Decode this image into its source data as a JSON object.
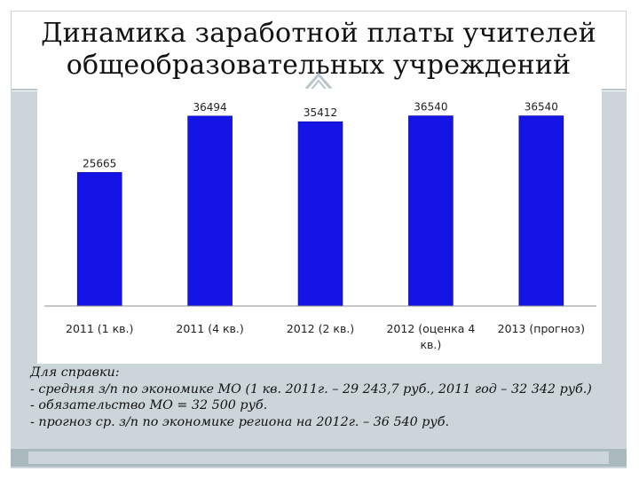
{
  "slide": {
    "title_line1": "Динамика заработной платы учителей",
    "title_line2": "общеобразовательных учреждений"
  },
  "chart_data": {
    "type": "bar",
    "categories": [
      "2011 (1 кв.)",
      "2011 (4 кв.)",
      "2012 (2 кв.)",
      "2012 (оценка 4 кв.)",
      "2013 (прогноз)"
    ],
    "category_lines": [
      [
        "2011 (1 кв.)"
      ],
      [
        "2011 (4 кв.)"
      ],
      [
        "2012 (2 кв.)"
      ],
      [
        "2012 (оценка 4",
        "кв.)"
      ],
      [
        "2013 (прогноз)"
      ]
    ],
    "values": [
      25665,
      36494,
      35412,
      36540,
      36540
    ],
    "data_labels": [
      "25665",
      "36494",
      "35412",
      "36540",
      "36540"
    ],
    "ylim": [
      0,
      38000
    ],
    "grid": false,
    "bar_color": "#1414e6"
  },
  "notes": {
    "heading": "Для справки:",
    "line1": "- средняя з/п по экономике МО (1 кв. 2011г. – 29 243,7 руб., 2011 год – 32 342 руб.)",
    "line2": "- обязательство МО = 32 500 руб.",
    "line3": "- прогноз ср. з/п по экономике региона на 2012г. – 36 540 руб."
  }
}
